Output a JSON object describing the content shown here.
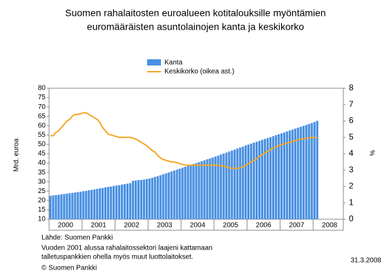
{
  "chart_data": {
    "type": "bar_line",
    "title": [
      "Suomen rahalaitosten euroalueen kotitalouksille myöntämien",
      "euromääräisten asuntolainojen kanta ja keskikorko"
    ],
    "y_label": "Mrd. euroa",
    "y2_label": "%",
    "categories": [
      "2000",
      null,
      null,
      null,
      null,
      null,
      null,
      null,
      null,
      null,
      null,
      null,
      "2001",
      null,
      null,
      null,
      null,
      null,
      null,
      null,
      null,
      null,
      null,
      null,
      "2002",
      null,
      null,
      null,
      null,
      null,
      null,
      null,
      null,
      null,
      null,
      null,
      "2003",
      null,
      null,
      null,
      null,
      null,
      null,
      null,
      null,
      null,
      null,
      null,
      "2004",
      null,
      null,
      null,
      null,
      null,
      null,
      null,
      null,
      null,
      null,
      null,
      "2005",
      null,
      null,
      null,
      null,
      null,
      null,
      null,
      null,
      null,
      null,
      null,
      "2006",
      null,
      null,
      null,
      null,
      null,
      null,
      null,
      null,
      null,
      null,
      null,
      "2007",
      null,
      null,
      null,
      null,
      null,
      null,
      null,
      null,
      null,
      null,
      null,
      "2008",
      null
    ],
    "series": [
      {
        "name": "Kanta",
        "type": "bar",
        "color": "#4a90e2",
        "values": [
          22.5,
          22.7,
          22.9,
          23.1,
          23.3,
          23.5,
          23.7,
          23.9,
          24.1,
          24.3,
          24.5,
          24.7,
          25.0,
          25.2,
          25.5,
          25.7,
          26.0,
          26.2,
          26.5,
          26.7,
          27.0,
          27.3,
          27.5,
          27.8,
          28.0,
          28.2,
          28.5,
          28.8,
          29.0,
          29.3,
          30.5,
          30.7,
          30.9,
          31.0,
          31.2,
          31.5,
          31.7,
          32.1,
          32.6,
          33.0,
          33.5,
          34.0,
          34.5,
          35.0,
          35.5,
          36.0,
          36.5,
          37.0,
          37.5,
          38.0,
          38.5,
          39.0,
          39.5,
          40.0,
          40.5,
          41.0,
          41.5,
          42.0,
          42.5,
          43.0,
          43.5,
          44.0,
          44.6,
          45.1,
          45.6,
          46.2,
          46.7,
          47.2,
          47.8,
          48.3,
          48.8,
          49.4,
          49.9,
          50.4,
          50.9,
          51.4,
          51.9,
          52.4,
          52.9,
          53.4,
          53.9,
          54.4,
          54.9,
          55.4,
          55.9,
          56.4,
          56.9,
          57.4,
          57.9,
          58.4,
          58.9,
          59.4,
          59.9,
          60.4,
          60.9,
          61.4,
          62.0,
          62.6
        ]
      },
      {
        "name": "Keskikorko (oikea ast.)",
        "type": "line",
        "axis": "y2",
        "color": "#f5a623",
        "values": [
          5.1,
          5.1,
          5.3,
          5.4,
          5.6,
          5.8,
          6.0,
          6.1,
          6.3,
          6.4,
          6.4,
          6.45,
          6.5,
          6.5,
          6.4,
          6.3,
          6.2,
          6.1,
          5.9,
          5.6,
          5.4,
          5.2,
          5.15,
          5.1,
          5.05,
          5.0,
          5.0,
          5.0,
          5.0,
          5.0,
          4.95,
          4.9,
          4.8,
          4.7,
          4.6,
          4.5,
          4.35,
          4.2,
          4.1,
          3.9,
          3.75,
          3.65,
          3.6,
          3.55,
          3.5,
          3.5,
          3.45,
          3.4,
          3.35,
          3.3,
          3.3,
          3.3,
          3.3,
          3.3,
          3.3,
          3.3,
          3.3,
          3.3,
          3.3,
          3.3,
          3.3,
          3.3,
          3.25,
          3.25,
          3.2,
          3.15,
          3.1,
          3.1,
          3.1,
          3.15,
          3.2,
          3.3,
          3.4,
          3.5,
          3.6,
          3.7,
          3.85,
          3.95,
          4.05,
          4.15,
          4.25,
          4.35,
          4.4,
          4.5,
          4.55,
          4.6,
          4.65,
          4.7,
          4.75,
          4.8,
          4.85,
          4.9,
          4.9,
          4.95,
          4.95,
          5.0,
          5.0,
          4.95
        ]
      }
    ],
    "ylim": [
      10,
      80
    ],
    "yticks": [
      10,
      15,
      20,
      25,
      30,
      35,
      40,
      45,
      50,
      55,
      60,
      65,
      70,
      75,
      80
    ],
    "y2lim": [
      0,
      8
    ],
    "y2ticks": [
      0,
      1,
      2,
      3,
      4,
      5,
      6,
      7,
      8
    ],
    "source": "Lähde: Suomen Pankki",
    "notes": [
      "Vuoden 2001 alussa rahalaitossektori laajeni kattamaan",
      "talletuspankkien ohella myös muut luottolaitokset."
    ],
    "copyright": "© Suomen Pankki",
    "date": "31.3.2008"
  }
}
